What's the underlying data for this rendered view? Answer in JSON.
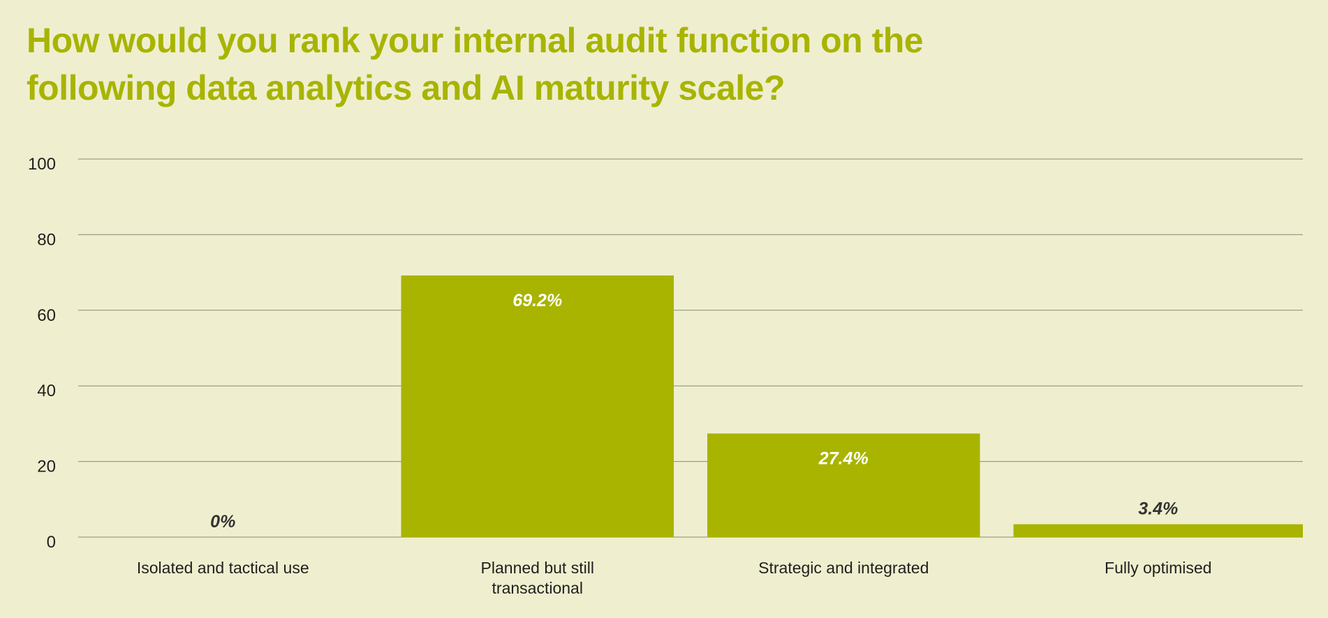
{
  "chart_data": {
    "type": "bar",
    "title": "How would you rank your internal audit function on the following data analytics and AI maturity scale?",
    "categories": [
      [
        "Isolated and tactical use"
      ],
      [
        "Planned but still",
        "transactional"
      ],
      [
        "Strategic and integrated"
      ],
      [
        "Fully optimised"
      ]
    ],
    "values": [
      0,
      69.2,
      27.4,
      3.4
    ],
    "value_labels": [
      "0%",
      "69.2%",
      "27.4%",
      "3.4%"
    ],
    "yticks": [
      "0",
      "20",
      "40",
      "60",
      "80",
      "100"
    ],
    "ylim": [
      0,
      100
    ],
    "xlabel": "",
    "ylabel": "",
    "grid": true,
    "legend": "none",
    "colors": {
      "bar": "#a8b400",
      "title": "#a8b400",
      "background": "#efefcf",
      "grid": "#8a8a7a",
      "label_inside": "#ffffff",
      "label_outside": "#333333"
    }
  }
}
